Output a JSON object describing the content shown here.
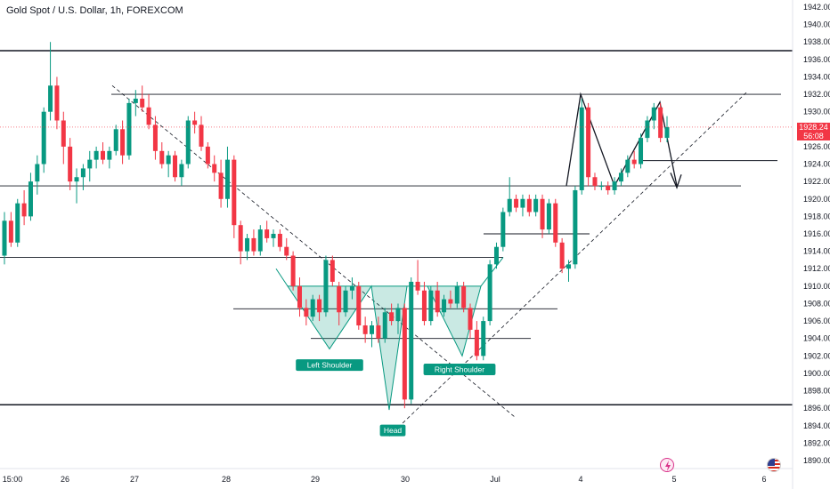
{
  "header": {
    "title": "Gold Spot / U.S. Dollar, 1h, FOREXCOM"
  },
  "price_tag": {
    "price": "1928.24",
    "countdown": "56:08"
  },
  "colors": {
    "up": "#089981",
    "down": "#f23645",
    "line": "#131722",
    "pattern": "#089981",
    "label_bg": "#089981"
  },
  "icons": {
    "lightning": "lightning-icon",
    "flag": "us-flag-icon"
  },
  "chart_data": {
    "type": "candlestick",
    "title": "Gold Spot / U.S. Dollar, 1h, FOREXCOM",
    "ylim": [
      1889,
      1943
    ],
    "y_ticks": [
      "1942.00",
      "1940.00",
      "1938.00",
      "1936.00",
      "1934.00",
      "1932.00",
      "1930.00",
      "1928.00",
      "1926.00",
      "1924.00",
      "1922.00",
      "1920.00",
      "1918.00",
      "1916.00",
      "1914.00",
      "1912.00",
      "1910.00",
      "1908.00",
      "1906.00",
      "1904.00",
      "1902.00",
      "1900.00",
      "1898.00",
      "1896.00",
      "1894.00",
      "1892.00",
      "1890.00"
    ],
    "x_ticks": [
      "15:00",
      "26",
      "27",
      "28",
      "29",
      "30",
      "Jul",
      "4",
      "5",
      "6"
    ],
    "last_price": 1928.24,
    "annotations": [
      "Left Shoulder",
      "Head",
      "Right Shoulder"
    ],
    "candles": [
      [
        1913.5,
        1918.5,
        1912.5,
        1917.5
      ],
      [
        1917.5,
        1918.5,
        1914.5,
        1915.0
      ],
      [
        1915.0,
        1920.0,
        1914.5,
        1919.5
      ],
      [
        1919.5,
        1921.0,
        1917.0,
        1918.0
      ],
      [
        1918.0,
        1923.0,
        1917.5,
        1922.0
      ],
      [
        1922.0,
        1925.0,
        1920.5,
        1924.0
      ],
      [
        1924.0,
        1930.5,
        1923.0,
        1930.0
      ],
      [
        1930.0,
        1938.0,
        1929.0,
        1933.0
      ],
      [
        1933.0,
        1934.0,
        1928.0,
        1929.0
      ],
      [
        1929.0,
        1930.0,
        1924.0,
        1926.0
      ],
      [
        1926.0,
        1927.0,
        1921.0,
        1922.0
      ],
      [
        1922.0,
        1923.5,
        1919.5,
        1922.5
      ],
      [
        1922.5,
        1924.0,
        1921.0,
        1923.5
      ],
      [
        1923.5,
        1925.5,
        1922.0,
        1924.5
      ],
      [
        1924.5,
        1926.0,
        1923.5,
        1925.5
      ],
      [
        1925.5,
        1926.5,
        1924.0,
        1924.5
      ],
      [
        1924.5,
        1926.0,
        1923.5,
        1925.5
      ],
      [
        1925.5,
        1928.5,
        1925.0,
        1928.0
      ],
      [
        1928.0,
        1929.0,
        1924.0,
        1925.0
      ],
      [
        1925.0,
        1931.5,
        1924.5,
        1931.0
      ],
      [
        1931.0,
        1932.5,
        1929.5,
        1931.5
      ],
      [
        1931.5,
        1933.0,
        1930.0,
        1930.5
      ],
      [
        1930.5,
        1932.0,
        1928.0,
        1928.5
      ],
      [
        1928.5,
        1929.5,
        1924.5,
        1925.5
      ],
      [
        1925.5,
        1926.5,
        1923.5,
        1924.0
      ],
      [
        1924.0,
        1925.5,
        1922.5,
        1925.0
      ],
      [
        1925.0,
        1925.5,
        1922.0,
        1922.5
      ],
      [
        1922.5,
        1924.5,
        1921.5,
        1924.0
      ],
      [
        1924.0,
        1929.5,
        1923.5,
        1929.0
      ],
      [
        1929.0,
        1930.0,
        1927.5,
        1928.5
      ],
      [
        1928.5,
        1929.5,
        1925.5,
        1926.0
      ],
      [
        1926.0,
        1926.5,
        1923.5,
        1924.0
      ],
      [
        1924.0,
        1925.0,
        1922.0,
        1923.0
      ],
      [
        1923.0,
        1924.5,
        1919.0,
        1920.0
      ],
      [
        1920.0,
        1926.0,
        1919.0,
        1924.5
      ],
      [
        1924.5,
        1925.0,
        1915.5,
        1917.0
      ],
      [
        1917.0,
        1917.5,
        1912.5,
        1914.0
      ],
      [
        1914.0,
        1916.0,
        1913.0,
        1915.5
      ],
      [
        1915.5,
        1916.5,
        1913.5,
        1914.0
      ],
      [
        1914.0,
        1917.0,
        1913.5,
        1916.5
      ],
      [
        1916.5,
        1917.5,
        1915.0,
        1915.5
      ],
      [
        1915.5,
        1916.5,
        1914.5,
        1916.0
      ],
      [
        1916.0,
        1916.5,
        1914.0,
        1914.5
      ],
      [
        1914.5,
        1915.5,
        1913.0,
        1913.5
      ],
      [
        1913.5,
        1914.0,
        1909.5,
        1910.0
      ],
      [
        1910.0,
        1911.0,
        1906.5,
        1907.5
      ],
      [
        1907.5,
        1908.5,
        1905.5,
        1906.5
      ],
      [
        1906.5,
        1909.0,
        1906.0,
        1908.5
      ],
      [
        1908.5,
        1909.0,
        1906.0,
        1907.0
      ],
      [
        1907.0,
        1913.5,
        1906.5,
        1913.0
      ],
      [
        1913.0,
        1913.5,
        1910.0,
        1910.5
      ],
      [
        1910.0,
        1910.5,
        1905.5,
        1907.0
      ],
      [
        1907.0,
        1910.0,
        1906.5,
        1909.5
      ],
      [
        1909.5,
        1911.0,
        1908.5,
        1910.0
      ],
      [
        1910.0,
        1910.5,
        1905.0,
        1905.5
      ],
      [
        1905.5,
        1906.5,
        1903.5,
        1904.5
      ],
      [
        1904.5,
        1906.0,
        1903.0,
        1905.5
      ],
      [
        1905.5,
        1906.5,
        1903.5,
        1904.0
      ],
      [
        1904.0,
        1907.5,
        1903.5,
        1907.0
      ],
      [
        1907.0,
        1908.0,
        1905.5,
        1906.0
      ],
      [
        1906.0,
        1908.0,
        1904.5,
        1907.5
      ],
      [
        1907.5,
        1908.0,
        1896.0,
        1897.0
      ],
      [
        1897.0,
        1911.0,
        1896.5,
        1910.5
      ],
      [
        1910.5,
        1913.0,
        1909.0,
        1909.5
      ],
      [
        1909.5,
        1910.5,
        1905.5,
        1906.0
      ],
      [
        1906.0,
        1910.0,
        1905.5,
        1909.5
      ],
      [
        1909.5,
        1910.5,
        1906.5,
        1907.0
      ],
      [
        1907.0,
        1909.0,
        1906.5,
        1908.5
      ],
      [
        1908.5,
        1909.5,
        1907.5,
        1908.0
      ],
      [
        1908.0,
        1910.5,
        1907.5,
        1910.0
      ],
      [
        1910.0,
        1910.5,
        1907.0,
        1907.5
      ],
      [
        1907.5,
        1908.0,
        1904.0,
        1905.0
      ],
      [
        1905.0,
        1906.0,
        1901.5,
        1902.0
      ],
      [
        1902.0,
        1906.5,
        1901.5,
        1906.0
      ],
      [
        1906.0,
        1913.0,
        1905.5,
        1912.5
      ],
      [
        1912.5,
        1915.0,
        1912.0,
        1914.5
      ],
      [
        1914.5,
        1919.0,
        1914.0,
        1918.5
      ],
      [
        1918.5,
        1922.5,
        1918.0,
        1920.0
      ],
      [
        1920.0,
        1920.5,
        1918.5,
        1919.0
      ],
      [
        1919.0,
        1920.5,
        1918.0,
        1920.0
      ],
      [
        1920.0,
        1920.5,
        1918.0,
        1918.5
      ],
      [
        1918.5,
        1920.5,
        1918.0,
        1920.0
      ],
      [
        1920.0,
        1920.5,
        1915.5,
        1916.5
      ],
      [
        1916.5,
        1920.0,
        1916.0,
        1919.5
      ],
      [
        1919.5,
        1920.0,
        1914.5,
        1915.0
      ],
      [
        1915.0,
        1915.5,
        1911.5,
        1912.0
      ],
      [
        1912.0,
        1913.0,
        1910.5,
        1912.5
      ],
      [
        1912.5,
        1921.5,
        1912.0,
        1921.0
      ],
      [
        1921.0,
        1931.5,
        1920.5,
        1930.5
      ],
      [
        1930.5,
        1931.0,
        1921.5,
        1922.5
      ],
      [
        1922.5,
        1923.0,
        1921.0,
        1921.5
      ],
      [
        1921.5,
        1922.0,
        1921.0,
        1921.5
      ],
      [
        1921.5,
        1922.0,
        1920.5,
        1921.0
      ],
      [
        1921.0,
        1922.5,
        1920.5,
        1922.0
      ],
      [
        1922.0,
        1923.5,
        1921.5,
        1923.0
      ],
      [
        1923.0,
        1925.0,
        1922.5,
        1924.5
      ],
      [
        1924.5,
        1925.5,
        1923.5,
        1924.0
      ],
      [
        1924.0,
        1927.5,
        1923.5,
        1927.0
      ],
      [
        1927.0,
        1929.5,
        1926.5,
        1929.0
      ],
      [
        1929.0,
        1931.0,
        1928.0,
        1930.5
      ],
      [
        1930.5,
        1931.0,
        1926.5,
        1927.0
      ],
      [
        1927.0,
        1929.5,
        1926.5,
        1928.24
      ]
    ]
  }
}
